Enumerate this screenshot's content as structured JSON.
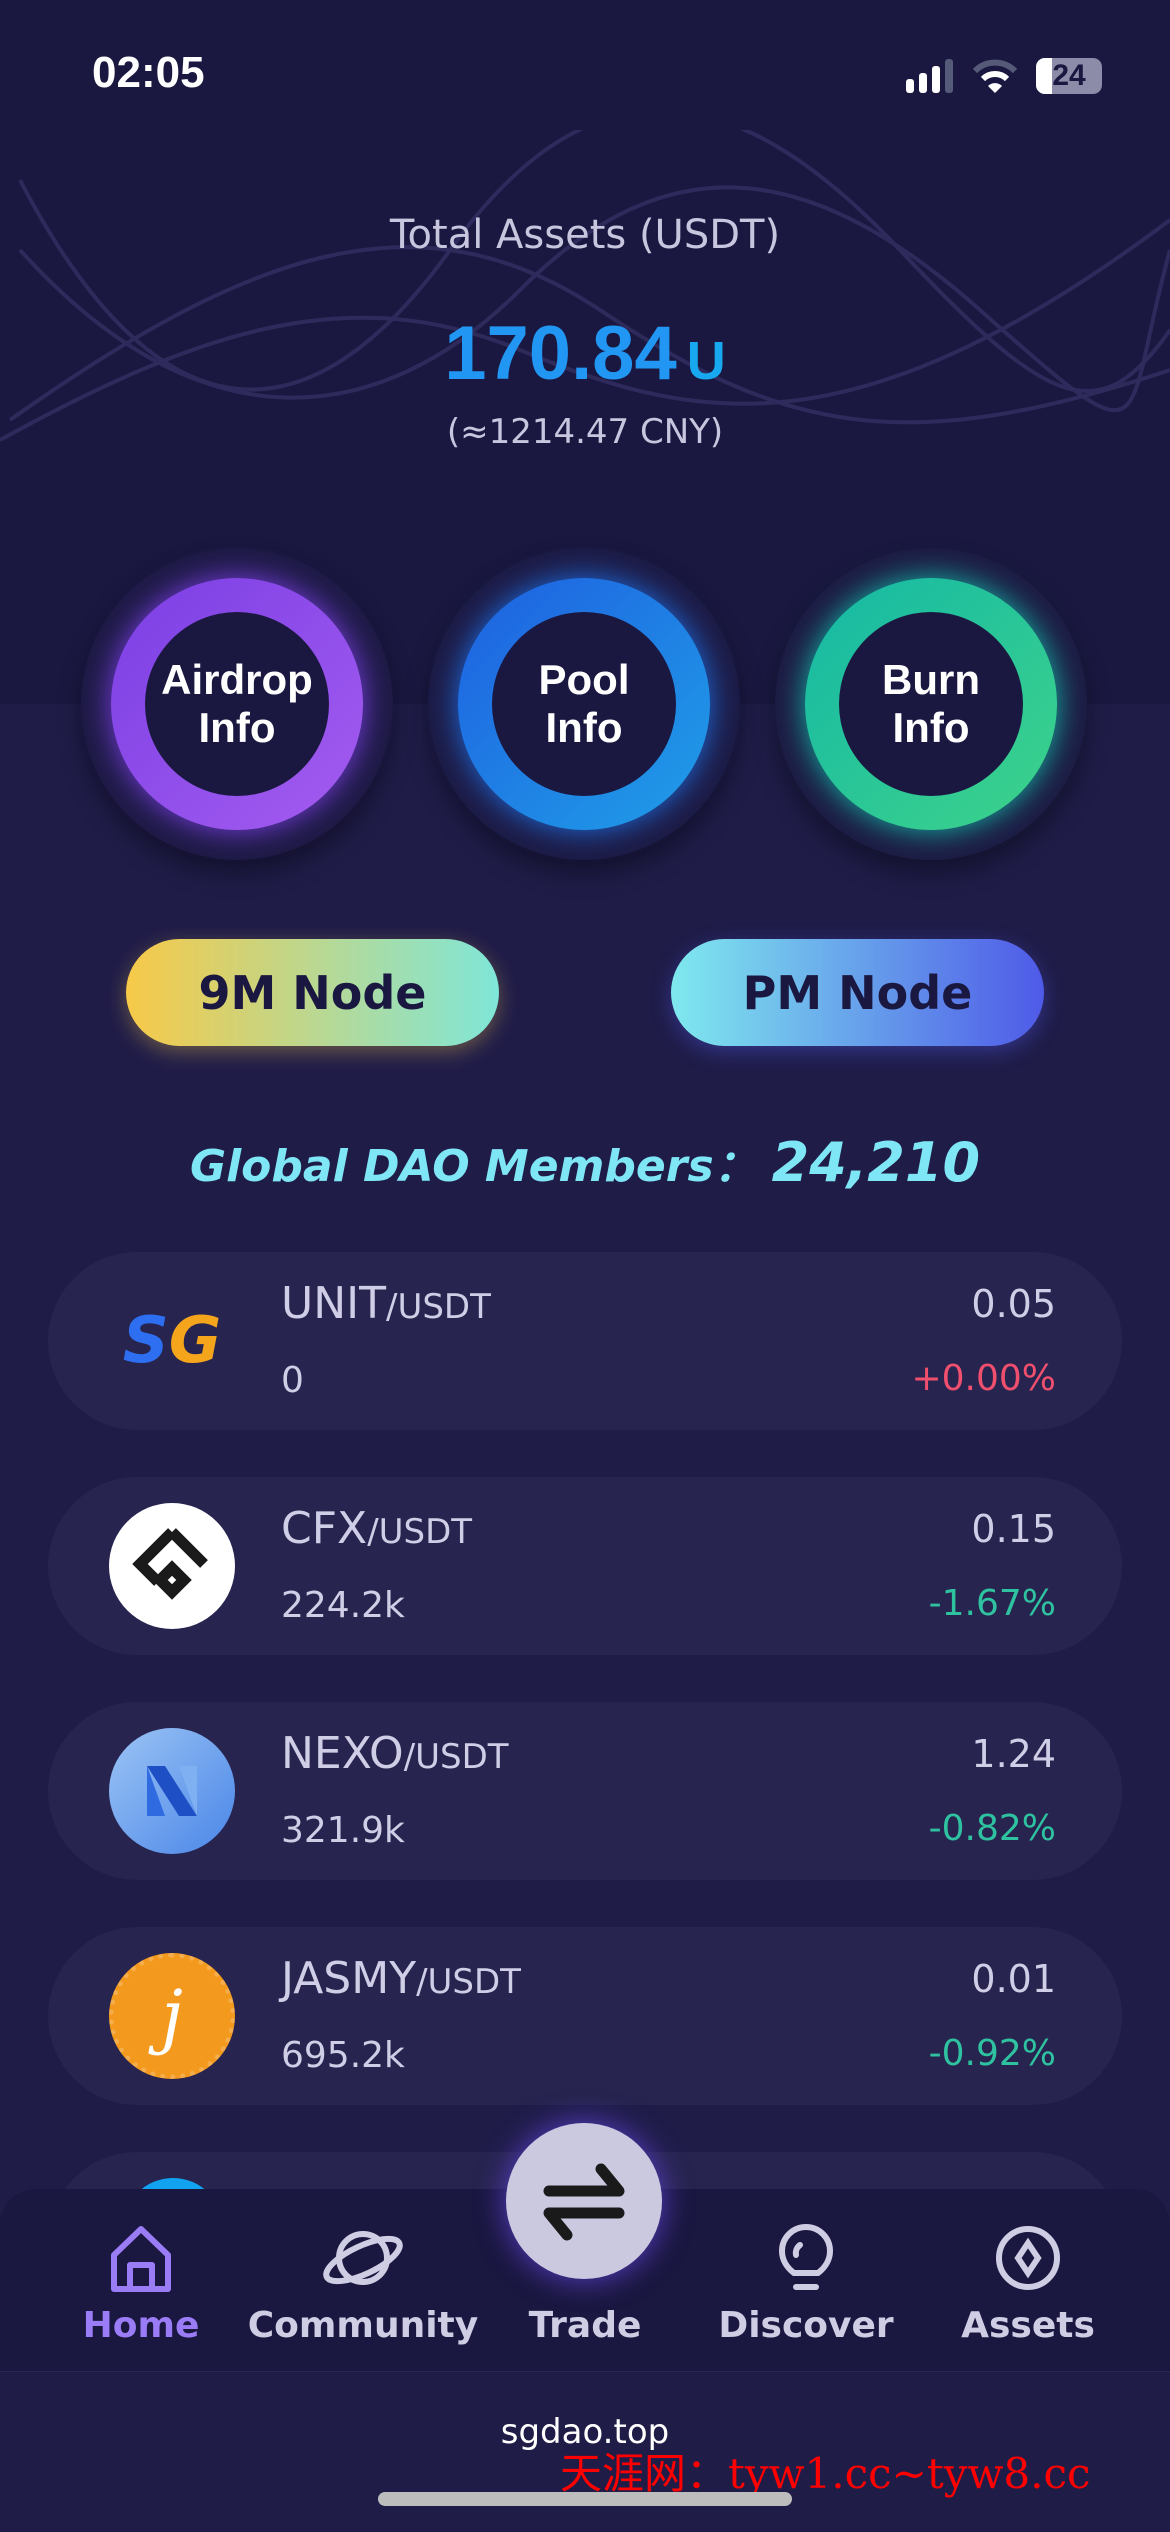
{
  "status_bar": {
    "time": "02:05",
    "battery": "24"
  },
  "header": {
    "title": "Total Assets (USDT)",
    "amount": "170.84",
    "unit": "U",
    "cny": "(≈1214.47 CNY)"
  },
  "info_rings": [
    {
      "label": "Airdrop\nInfo",
      "color_from": "#7b3fe4",
      "color_to": "#a45cf0"
    },
    {
      "label": "Pool\nInfo",
      "color_from": "#1f5fe0",
      "color_to": "#1f9fe8"
    },
    {
      "label": "Burn\nInfo",
      "color_from": "#14b8a6",
      "color_to": "#3ed38a"
    }
  ],
  "nodes": [
    {
      "label": "9M Node"
    },
    {
      "label": "PM Node"
    }
  ],
  "dao": {
    "label": "Global DAO Members：",
    "count": "24,210"
  },
  "markets": [
    {
      "base": "UNIT",
      "quote": "/USDT",
      "volume": "0",
      "price": "0.05",
      "change": "+0.00%",
      "dir": "up",
      "logo": "sg-logo"
    },
    {
      "base": "CFX",
      "quote": "/USDT",
      "volume": "224.2k",
      "price": "0.15",
      "change": "-1.67%",
      "dir": "down",
      "logo": "cfx-logo"
    },
    {
      "base": "NEXO",
      "quote": "/USDT",
      "volume": "321.9k",
      "price": "1.24",
      "change": "-0.82%",
      "dir": "down",
      "logo": "nexo-logo"
    },
    {
      "base": "JASMY",
      "quote": "/USDT",
      "volume": "695.2k",
      "price": "0.01",
      "change": "-0.92%",
      "dir": "down",
      "logo": "jasmy-logo"
    }
  ],
  "nav": {
    "home": "Home",
    "community": "Community",
    "trade": "Trade",
    "discover": "Discover",
    "assets": "Assets",
    "active": "home"
  },
  "colors": {
    "up": "#f0506e",
    "down": "#2fc2a0",
    "active_nav": "#9b7cf7"
  },
  "footer": {
    "url": "sgdao.top",
    "watermark": "天涯网：tyw1.cc~tyw8.cc"
  }
}
